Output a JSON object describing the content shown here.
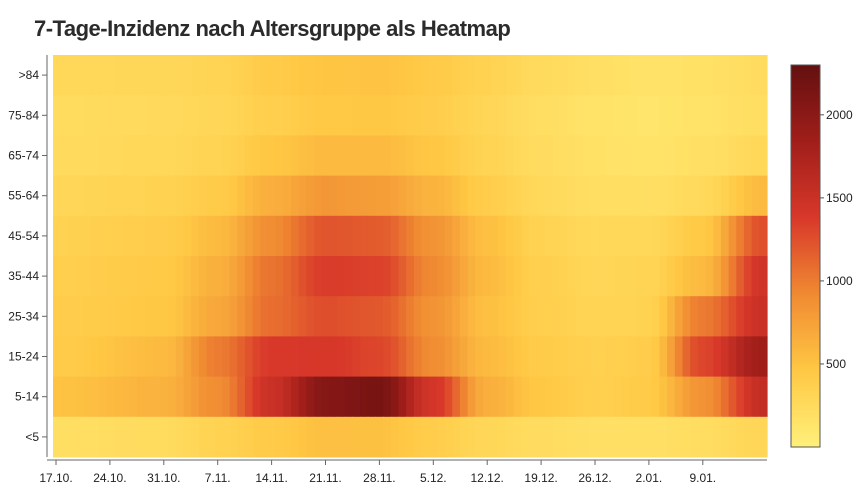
{
  "title": "7-Tage-Inzidenz nach Altersgruppe als Heatmap",
  "chart_data": {
    "type": "heatmap",
    "title": "7-Tage-Inzidenz nach Altersgruppe als Heatmap",
    "xlabel": "",
    "ylabel": "",
    "x_tick_labels": [
      "17.10.",
      "24.10.",
      "31.10.",
      "7.11.",
      "14.11.",
      "21.11.",
      "28.11.",
      "5.12.",
      "12.12.",
      "19.12.",
      "26.12.",
      "2.01.",
      "9.01."
    ],
    "y_categories": [
      ">84",
      "75-84",
      "65-74",
      "55-64",
      "45-54",
      "35-44",
      "25-34",
      "15-24",
      "5-14",
      "<5"
    ],
    "days": 93,
    "colorbar": {
      "min": 0,
      "max": 2300,
      "ticks": [
        500,
        1000,
        1500,
        2000
      ]
    },
    "colorscale": [
      "#fff07a",
      "#ffc844",
      "#f08a32",
      "#d8382a",
      "#a01e1a",
      "#641010"
    ],
    "series": [
      {
        "name": ">84",
        "x_days": [
          0,
          14,
          21,
          28,
          35,
          42,
          49,
          56,
          63,
          70,
          77,
          84,
          92
        ],
        "values": [
          280,
          290,
          320,
          420,
          480,
          500,
          430,
          340,
          250,
          190,
          160,
          170,
          230
        ]
      },
      {
        "name": "75-84",
        "x_days": [
          0,
          14,
          21,
          28,
          35,
          42,
          49,
          56,
          63,
          70,
          77,
          84,
          92
        ],
        "values": [
          240,
          260,
          300,
          380,
          450,
          460,
          400,
          300,
          210,
          150,
          130,
          150,
          210
        ]
      },
      {
        "name": "65-74",
        "x_days": [
          0,
          14,
          21,
          28,
          35,
          42,
          49,
          56,
          63,
          70,
          77,
          84,
          92
        ],
        "values": [
          250,
          280,
          330,
          470,
          560,
          560,
          470,
          330,
          230,
          170,
          150,
          180,
          280
        ]
      },
      {
        "name": "55-64",
        "x_days": [
          0,
          14,
          21,
          28,
          35,
          42,
          49,
          56,
          63,
          70,
          77,
          84,
          92
        ],
        "values": [
          300,
          340,
          420,
          650,
          820,
          780,
          610,
          400,
          270,
          210,
          200,
          260,
          560
        ]
      },
      {
        "name": "45-54",
        "x_days": [
          0,
          14,
          21,
          28,
          35,
          42,
          49,
          56,
          63,
          70,
          77,
          84,
          92
        ],
        "values": [
          350,
          400,
          560,
          900,
          1220,
          1180,
          850,
          520,
          340,
          270,
          280,
          440,
          1250
        ]
      },
      {
        "name": "35-44",
        "x_days": [
          0,
          14,
          21,
          28,
          35,
          42,
          49,
          56,
          63,
          70,
          77,
          84,
          92
        ],
        "values": [
          380,
          440,
          640,
          1050,
          1360,
          1330,
          920,
          560,
          370,
          300,
          320,
          560,
          1450
        ]
      },
      {
        "name": "25-34",
        "x_days": [
          0,
          14,
          21,
          28,
          35,
          42,
          49,
          56,
          63,
          70,
          77,
          84,
          92
        ],
        "values": [
          400,
          460,
          700,
          1080,
          1260,
          1200,
          850,
          520,
          380,
          320,
          340,
          1000,
          1500
        ]
      },
      {
        "name": "15-24",
        "x_days": [
          0,
          14,
          21,
          28,
          35,
          42,
          49,
          56,
          63,
          70,
          77,
          84,
          92
        ],
        "values": [
          420,
          560,
          1000,
          1380,
          1400,
          1300,
          900,
          560,
          420,
          360,
          400,
          1300,
          1850
        ]
      },
      {
        "name": "5-14",
        "x_days": [
          0,
          14,
          21,
          28,
          35,
          42,
          49,
          56,
          63,
          70,
          77,
          84,
          92
        ],
        "values": [
          500,
          620,
          900,
          1500,
          2050,
          2150,
          1420,
          650,
          460,
          370,
          430,
          850,
          1550
        ]
      },
      {
        "name": "<5",
        "x_days": [
          0,
          14,
          21,
          28,
          35,
          42,
          49,
          56,
          63,
          70,
          77,
          84,
          92
        ],
        "values": [
          200,
          240,
          340,
          430,
          520,
          510,
          400,
          290,
          230,
          190,
          180,
          220,
          300
        ]
      }
    ]
  }
}
